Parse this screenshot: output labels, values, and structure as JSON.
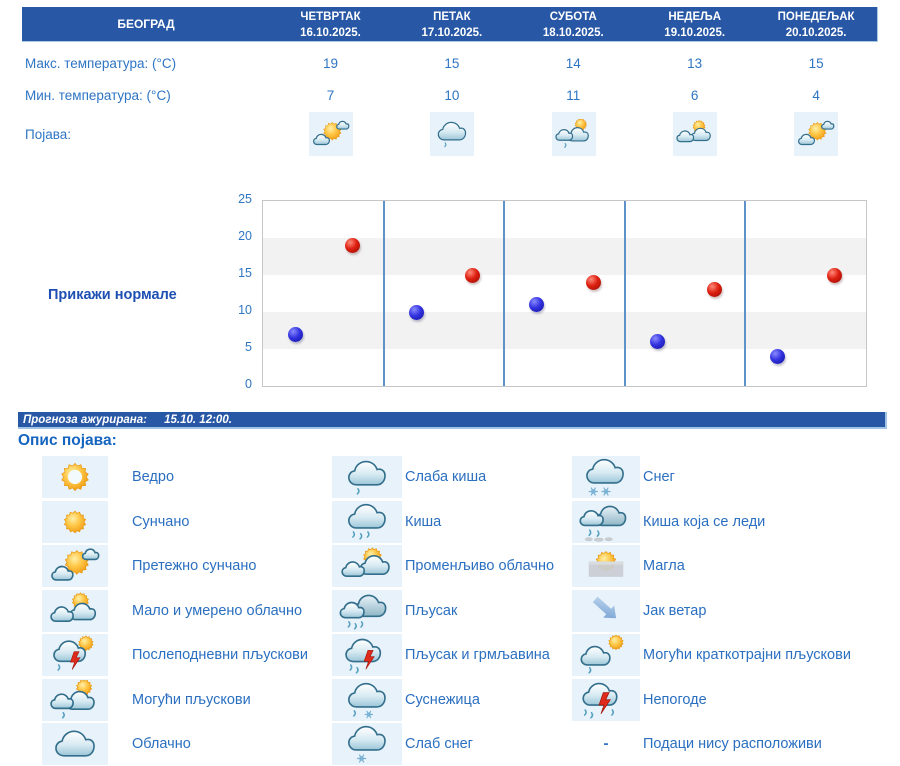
{
  "header": {
    "city": "БЕОГРАД",
    "days": [
      {
        "name": "ЧЕТВРТАК",
        "date": "16.10.2025.",
        "max": 19,
        "min": 7,
        "icon": "mostly-sunny",
        "icon_title": "претежно сунчано"
      },
      {
        "name": "ПЕТАК",
        "date": "17.10.2025.",
        "max": 15,
        "min": 10,
        "icon": "light-rain",
        "icon_title": "слаба киша"
      },
      {
        "name": "СУБОТА",
        "date": "18.10.2025.",
        "max": 14,
        "min": 11,
        "icon": "possible-showers",
        "icon_title": "могући пљускови"
      },
      {
        "name": "НЕДЕЉА",
        "date": "19.10.2025.",
        "max": 13,
        "min": 6,
        "icon": "partly-cloudy",
        "icon_title": "мало и умерено облачно"
      },
      {
        "name": "ПОНЕДЕЉАК",
        "date": "20.10.2025.",
        "max": 15,
        "min": 4,
        "icon": "mostly-sunny",
        "icon_title": "претежно сунчано"
      }
    ]
  },
  "rows": {
    "max_label": "Макс. температура: (°C)",
    "min_label": "Мин. температура: (°C)",
    "phenomena_label": "Појава:"
  },
  "normals_link": "Прикажи нормале",
  "chart_data": {
    "type": "scatter",
    "categories": [
      "16.10.2025.",
      "17.10.2025.",
      "18.10.2025.",
      "19.10.2025.",
      "20.10.2025."
    ],
    "series": [
      {
        "name": "Мин. температура (°C)",
        "color": "#1a1acc",
        "values": [
          7,
          10,
          11,
          6,
          4
        ]
      },
      {
        "name": "Макс. температура (°C)",
        "color": "#cc1111",
        "values": [
          19,
          15,
          14,
          13,
          15
        ]
      }
    ],
    "ylim": [
      0,
      25
    ],
    "yticks": [
      0,
      5,
      10,
      15,
      20,
      25
    ],
    "grid": "alternating horizontal bands (gray 5-10 and 15-20), blue vertical day separators",
    "legend_position": "none",
    "title": "",
    "xlabel": "",
    "ylabel": ""
  },
  "updated_bar": {
    "label": "Прогноза ажурирана:",
    "value": "15.10. 12:00."
  },
  "legend": {
    "title": "Опис појава:",
    "columns": [
      [
        {
          "icon": "clear",
          "label": "Ведро"
        },
        {
          "icon": "sunny",
          "label": "Сунчано"
        },
        {
          "icon": "mostly-sunny",
          "label": "Претежно сунчано"
        },
        {
          "icon": "partly-cloudy",
          "label": "Мало и умерено облачно"
        },
        {
          "icon": "afternoon-showers",
          "label": "Послеподневни пљускови"
        },
        {
          "icon": "possible-showers",
          "label": "Могући пљускови"
        },
        {
          "icon": "cloudy",
          "label": "Облачно"
        }
      ],
      [
        {
          "icon": "light-rain",
          "label": "Слаба киша"
        },
        {
          "icon": "rain",
          "label": "Киша"
        },
        {
          "icon": "variable-clouds",
          "label": "Променљиво облачно"
        },
        {
          "icon": "showers",
          "label": "Пљусак"
        },
        {
          "icon": "thunder-showers",
          "label": "Пљусак и грмљавина"
        },
        {
          "icon": "sleet",
          "label": "Суснежица"
        },
        {
          "icon": "light-snow",
          "label": "Слаб снег"
        }
      ],
      [
        {
          "icon": "snow",
          "label": "Снег"
        },
        {
          "icon": "freezing-rain",
          "label": "Киша која се леди"
        },
        {
          "icon": "fog",
          "label": "Магла"
        },
        {
          "icon": "strong-wind",
          "label": "Јак ветар"
        },
        {
          "icon": "possible-brief-showers",
          "label": "Могући краткотрајни пљускови"
        },
        {
          "icon": "storms",
          "label": "Непогоде"
        },
        {
          "icon": "dash",
          "label": "Подаци нису расположиви",
          "symbol": "-"
        }
      ]
    ]
  },
  "colors": {
    "header_bg": "#2757a5",
    "label_blue": "#2e75c3",
    "link_blue": "#1e4fb2",
    "legend_label_blue": "#2a6fc0",
    "icon_cell_bg": "#e7f2fa",
    "band_gray": "#f2f2f2",
    "separator_blue": "#5e92c8"
  }
}
